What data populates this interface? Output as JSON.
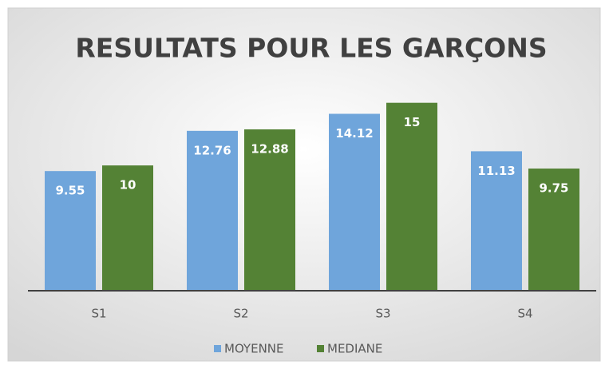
{
  "chart_data": {
    "type": "bar",
    "title": "RESULTATS POUR LES GARÇONS",
    "categories": [
      "S1",
      "S2",
      "S3",
      "S4"
    ],
    "series": [
      {
        "name": "MOYENNE",
        "color": "#6fa5db",
        "values": [
          9.55,
          12.76,
          14.12,
          11.13
        ]
      },
      {
        "name": "MEDIANE",
        "color": "#548235",
        "values": [
          10,
          12.88,
          15,
          9.75
        ]
      }
    ],
    "ylim": [
      0,
      16
    ],
    "legend": "bottom"
  }
}
